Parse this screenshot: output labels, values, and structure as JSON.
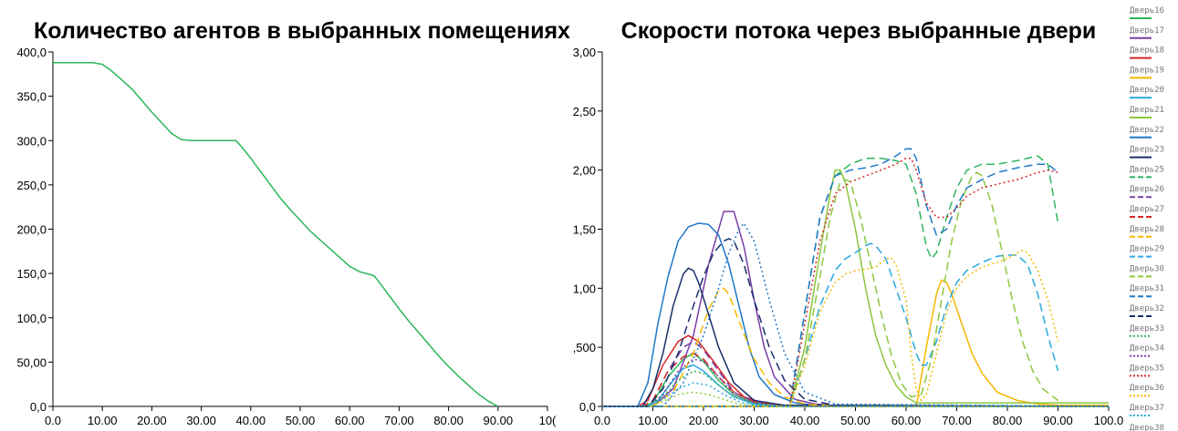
{
  "chart_data": [
    {
      "type": "line",
      "title": "Количество агентов в выбранных помещениях",
      "xlabel": "",
      "ylabel": "",
      "xlim": [
        0,
        100
      ],
      "ylim": [
        0,
        400
      ],
      "x_ticks": [
        "0.0",
        "10.00",
        "20.00",
        "30.00",
        "40.00",
        "50.00",
        "60.00",
        "70.00",
        "80.00",
        "90.00",
        "10("
      ],
      "y_ticks": [
        "0,0",
        "50,00",
        "100,0",
        "150,0",
        "200,0",
        "250,0",
        "300,0",
        "350,0",
        "400,0"
      ],
      "grid": false,
      "legend": "none",
      "series": [
        {
          "color": "#2db55d",
          "x": [
            0,
            8,
            10,
            12,
            14,
            16,
            18,
            20,
            22,
            24,
            26,
            28,
            30,
            32,
            34,
            36,
            37,
            38,
            40,
            42,
            44,
            46,
            48,
            50,
            52,
            54,
            56,
            58,
            60,
            62,
            64,
            65,
            66,
            68,
            70,
            72,
            74,
            76,
            78,
            80,
            82,
            84,
            86,
            88,
            90
          ],
          "y": [
            388,
            388,
            386,
            378,
            368,
            358,
            345,
            332,
            320,
            308,
            301,
            300,
            300,
            300,
            300,
            300,
            300,
            294,
            280,
            265,
            250,
            235,
            222,
            210,
            198,
            188,
            178,
            168,
            158,
            152,
            149,
            147,
            140,
            125,
            110,
            96,
            83,
            70,
            57,
            45,
            34,
            24,
            14,
            6,
            0
          ]
        }
      ]
    },
    {
      "type": "line",
      "title": "Скорости потока через выбранные двери",
      "xlabel": "",
      "ylabel": "",
      "xlim": [
        0,
        100
      ],
      "ylim": [
        0,
        3
      ],
      "x_ticks": [
        "0.0",
        "10.00",
        "20.00",
        "30.00",
        "40.00",
        "50.00",
        "60.00",
        "70.00",
        "80.00",
        "90.00",
        "100.0"
      ],
      "y_ticks": [
        "0,0",
        ",500",
        "1,00",
        "1,50",
        "2,00",
        "2,50",
        "3,00"
      ],
      "grid": false,
      "legend": "right",
      "series": [
        {
          "name": "Дверь16",
          "color": "#2db55d",
          "dash": "solid",
          "x": [
            0,
            8,
            10,
            13,
            16,
            18,
            20,
            23,
            26,
            30,
            36,
            100
          ],
          "y": [
            0,
            0,
            0.03,
            0.25,
            0.4,
            0.45,
            0.38,
            0.22,
            0.1,
            0.03,
            0,
            0
          ]
        },
        {
          "name": "Дверь17",
          "color": "#7a3ea6",
          "dash": "solid",
          "x": [
            0,
            10,
            14,
            18,
            21,
            24,
            26,
            28,
            30,
            32,
            34,
            38,
            42,
            48,
            100
          ],
          "y": [
            0,
            0,
            0.15,
            0.6,
            1.2,
            1.65,
            1.65,
            1.35,
            0.9,
            0.5,
            0.25,
            0.06,
            0.02,
            0,
            0
          ]
        },
        {
          "name": "Дверь18",
          "color": "#d62728",
          "dash": "solid",
          "x": [
            0,
            7,
            9,
            12,
            15,
            17,
            19,
            22,
            25,
            28,
            34,
            100
          ],
          "y": [
            0,
            0,
            0.05,
            0.35,
            0.55,
            0.6,
            0.55,
            0.38,
            0.2,
            0.08,
            0,
            0
          ]
        },
        {
          "name": "Дверь19",
          "color": "#f5b800",
          "dash": "solid",
          "x": [
            0,
            62,
            64,
            66,
            67,
            68,
            69,
            71,
            73,
            75,
            78,
            82,
            86,
            90,
            100
          ],
          "y": [
            0,
            0,
            0.5,
            0.95,
            1.07,
            1.05,
            0.95,
            0.7,
            0.45,
            0.28,
            0.12,
            0.05,
            0.02,
            0.01,
            0.01
          ]
        },
        {
          "name": "Дверь20",
          "color": "#29a8e0",
          "dash": "solid",
          "x": [
            0,
            9,
            11,
            14,
            16,
            18,
            20,
            23,
            26,
            30,
            36,
            100
          ],
          "y": [
            0,
            0,
            0.05,
            0.22,
            0.32,
            0.35,
            0.3,
            0.18,
            0.08,
            0.02,
            0,
            0
          ]
        },
        {
          "name": "Дверь21",
          "color": "#8cc63f",
          "dash": "solid",
          "x": [
            0,
            37,
            40,
            43,
            45,
            46,
            47,
            48,
            50,
            52,
            54,
            56,
            58,
            60,
            62,
            100
          ],
          "y": [
            0,
            0,
            0.5,
            1.3,
            1.8,
            2.0,
            2.0,
            1.9,
            1.5,
            1.0,
            0.6,
            0.35,
            0.18,
            0.08,
            0.03,
            0.03
          ]
        },
        {
          "name": "Дверь22",
          "color": "#1f78c8",
          "dash": "solid",
          "x": [
            0,
            7,
            9,
            11,
            13,
            15,
            17,
            19,
            21,
            23,
            25,
            27,
            29,
            31,
            34,
            38,
            42,
            50,
            100
          ],
          "y": [
            0,
            0,
            0.2,
            0.7,
            1.1,
            1.4,
            1.52,
            1.55,
            1.54,
            1.45,
            1.2,
            0.85,
            0.5,
            0.25,
            0.1,
            0.03,
            0.01,
            0,
            0
          ]
        },
        {
          "name": "Дверь23",
          "color": "#1a2f6b",
          "dash": "solid",
          "x": [
            0,
            8,
            10,
            12,
            14,
            16,
            17,
            18,
            19,
            21,
            23,
            26,
            30,
            36,
            100
          ],
          "y": [
            0,
            0,
            0.15,
            0.45,
            0.85,
            1.12,
            1.17,
            1.15,
            1.05,
            0.78,
            0.5,
            0.2,
            0.05,
            0.01,
            0
          ]
        },
        {
          "name": "Дверь25",
          "color": "#2db55d",
          "dash": "dashed",
          "x": [
            0,
            37,
            40,
            43,
            46,
            49,
            52,
            55,
            58,
            60,
            62,
            64,
            65,
            66,
            68,
            70,
            72,
            75,
            78,
            82,
            86,
            88,
            90
          ],
          "y": [
            0,
            0,
            0.8,
            1.6,
            1.95,
            2.05,
            2.1,
            2.1,
            2.08,
            2.05,
            1.8,
            1.35,
            1.25,
            1.3,
            1.6,
            1.85,
            2.0,
            2.05,
            2.05,
            2.08,
            2.12,
            2.05,
            1.55
          ]
        },
        {
          "name": "Дверь26",
          "color": "#7a3ea6",
          "dash": "dashed",
          "x": [
            0,
            8,
            10,
            13,
            16,
            18,
            20,
            23,
            26,
            30,
            36,
            100
          ],
          "y": [
            0,
            0,
            0.05,
            0.3,
            0.5,
            0.55,
            0.48,
            0.3,
            0.12,
            0.04,
            0,
            0
          ]
        },
        {
          "name": "Дверь27",
          "color": "#d62728",
          "dash": "dashed",
          "x": [
            0,
            8,
            10,
            13,
            16,
            18,
            20,
            23,
            26,
            30,
            36,
            100
          ],
          "y": [
            0,
            0,
            0.05,
            0.3,
            0.42,
            0.45,
            0.4,
            0.25,
            0.12,
            0.04,
            0,
            0
          ]
        },
        {
          "name": "Дверь28",
          "color": "#f5b800",
          "dash": "dashed",
          "x": [
            0,
            10,
            14,
            18,
            21,
            23,
            24,
            25,
            27,
            30,
            33,
            36,
            40,
            46,
            100
          ],
          "y": [
            0,
            0,
            0.12,
            0.45,
            0.82,
            0.98,
            1.0,
            0.95,
            0.72,
            0.4,
            0.2,
            0.08,
            0.02,
            0,
            0
          ]
        },
        {
          "name": "Дверь29",
          "color": "#29a8e0",
          "dash": "dashed",
          "x": [
            0,
            37,
            40,
            43,
            46,
            48,
            50,
            52,
            53,
            54,
            56,
            58,
            60,
            62,
            63,
            64,
            66,
            68,
            70,
            72,
            75,
            78,
            80,
            82,
            84,
            86,
            88,
            90
          ],
          "y": [
            0,
            0,
            0.4,
            0.85,
            1.15,
            1.25,
            1.3,
            1.36,
            1.38,
            1.36,
            1.25,
            1.0,
            0.75,
            0.45,
            0.35,
            0.35,
            0.55,
            0.85,
            1.05,
            1.15,
            1.22,
            1.27,
            1.28,
            1.28,
            1.2,
            0.95,
            0.6,
            0.3
          ]
        },
        {
          "name": "Дверь30",
          "color": "#8cc63f",
          "dash": "dashed",
          "x": [
            0,
            37,
            40,
            43,
            45,
            47,
            48,
            49,
            51,
            53,
            55,
            57,
            59,
            61,
            63,
            65,
            67,
            69,
            71,
            73,
            74,
            75,
            77,
            79,
            81,
            83,
            85,
            87,
            90
          ],
          "y": [
            0,
            0,
            0.4,
            1.1,
            1.6,
            1.9,
            1.92,
            1.9,
            1.6,
            1.2,
            0.8,
            0.45,
            0.2,
            0.08,
            0.1,
            0.4,
            0.9,
            1.4,
            1.75,
            1.95,
            1.98,
            1.95,
            1.7,
            1.3,
            0.9,
            0.55,
            0.3,
            0.15,
            0.05
          ]
        },
        {
          "name": "Дверь31",
          "color": "#1f78c8",
          "dash": "dashed",
          "x": [
            0,
            37,
            40,
            43,
            46,
            49,
            52,
            55,
            58,
            60,
            61,
            62,
            64,
            66,
            68,
            70,
            72,
            75,
            78,
            82,
            86,
            88,
            90
          ],
          "y": [
            0,
            0,
            0.8,
            1.6,
            1.95,
            2.0,
            2.02,
            2.05,
            2.12,
            2.18,
            2.18,
            2.1,
            1.7,
            1.45,
            1.5,
            1.7,
            1.85,
            1.92,
            1.98,
            2.02,
            2.05,
            2.05,
            1.98
          ]
        },
        {
          "name": "Дверь32",
          "color": "#1a2f6b",
          "dash": "dashed",
          "x": [
            0,
            9,
            12,
            15,
            18,
            20,
            22,
            24,
            25,
            26,
            28,
            30,
            33,
            36,
            40,
            46,
            100
          ],
          "y": [
            0,
            0,
            0.15,
            0.45,
            0.85,
            1.1,
            1.3,
            1.4,
            1.42,
            1.4,
            1.2,
            0.9,
            0.5,
            0.22,
            0.06,
            0.01,
            0
          ]
        },
        {
          "name": "Дверь33",
          "color": "#2db55d",
          "dash": "dotted",
          "x": [
            0,
            9,
            12,
            15,
            18,
            20,
            23,
            26,
            30,
            36,
            100
          ],
          "y": [
            0,
            0,
            0.08,
            0.22,
            0.3,
            0.28,
            0.18,
            0.08,
            0.03,
            0,
            0
          ]
        },
        {
          "name": "Дверь34",
          "color": "#7a3ea6",
          "dash": "dotted",
          "x": [
            0,
            9,
            12,
            15,
            18,
            20,
            23,
            26,
            30,
            36,
            100
          ],
          "y": [
            0,
            0,
            0.1,
            0.3,
            0.4,
            0.38,
            0.25,
            0.1,
            0.03,
            0,
            0
          ]
        },
        {
          "name": "Дверь35",
          "color": "#d62728",
          "dash": "dotted",
          "x": [
            0,
            37,
            40,
            43,
            46,
            49,
            52,
            55,
            58,
            60,
            61,
            62,
            64,
            66,
            68,
            70,
            72,
            75,
            78,
            82,
            86,
            88,
            90
          ],
          "y": [
            0,
            0,
            0.7,
            1.4,
            1.8,
            1.9,
            1.95,
            2.0,
            2.05,
            2.1,
            2.1,
            2.0,
            1.72,
            1.6,
            1.6,
            1.68,
            1.78,
            1.85,
            1.88,
            1.92,
            1.98,
            2.0,
            1.98
          ]
        },
        {
          "name": "Дверь36",
          "color": "#f5b800",
          "dash": "dotted",
          "x": [
            0,
            37,
            40,
            43,
            46,
            48,
            50,
            52,
            54,
            56,
            57,
            58,
            60,
            61,
            62,
            63,
            64,
            66,
            68,
            70,
            72,
            75,
            78,
            80,
            82,
            83,
            84,
            86,
            88,
            90
          ],
          "y": [
            0,
            0,
            0.35,
            0.8,
            1.05,
            1.12,
            1.15,
            1.16,
            1.18,
            1.25,
            1.26,
            1.2,
            0.9,
            0.45,
            0.15,
            0.05,
            0.1,
            0.45,
            0.8,
            1.0,
            1.1,
            1.18,
            1.22,
            1.25,
            1.3,
            1.32,
            1.3,
            1.15,
            0.9,
            0.55
          ]
        },
        {
          "name": "Дверь37",
          "color": "#29a8e0",
          "dash": "dotted",
          "x": [
            0,
            9,
            12,
            15,
            18,
            21,
            24,
            27,
            30,
            36,
            100
          ],
          "y": [
            0,
            0,
            0.06,
            0.15,
            0.2,
            0.18,
            0.1,
            0.04,
            0.01,
            0,
            0
          ]
        },
        {
          "name": "Дверь38",
          "color": "#8cc63f",
          "dash": "dotted",
          "x": [
            0,
            9,
            12,
            15,
            18,
            21,
            24,
            27,
            30,
            36,
            100
          ],
          "y": [
            0,
            0,
            0.04,
            0.1,
            0.12,
            0.1,
            0.06,
            0.02,
            0.01,
            0,
            0
          ]
        },
        {
          "name": "",
          "color": "#1f78c8",
          "dash": "dotted",
          "x": [
            0,
            12,
            16,
            20,
            23,
            25,
            27,
            28,
            30,
            33,
            36,
            40,
            46,
            100
          ],
          "y": [
            0,
            0,
            0.2,
            0.6,
            1.0,
            1.3,
            1.5,
            1.55,
            1.4,
            0.9,
            0.45,
            0.12,
            0.02,
            0
          ]
        }
      ]
    }
  ]
}
